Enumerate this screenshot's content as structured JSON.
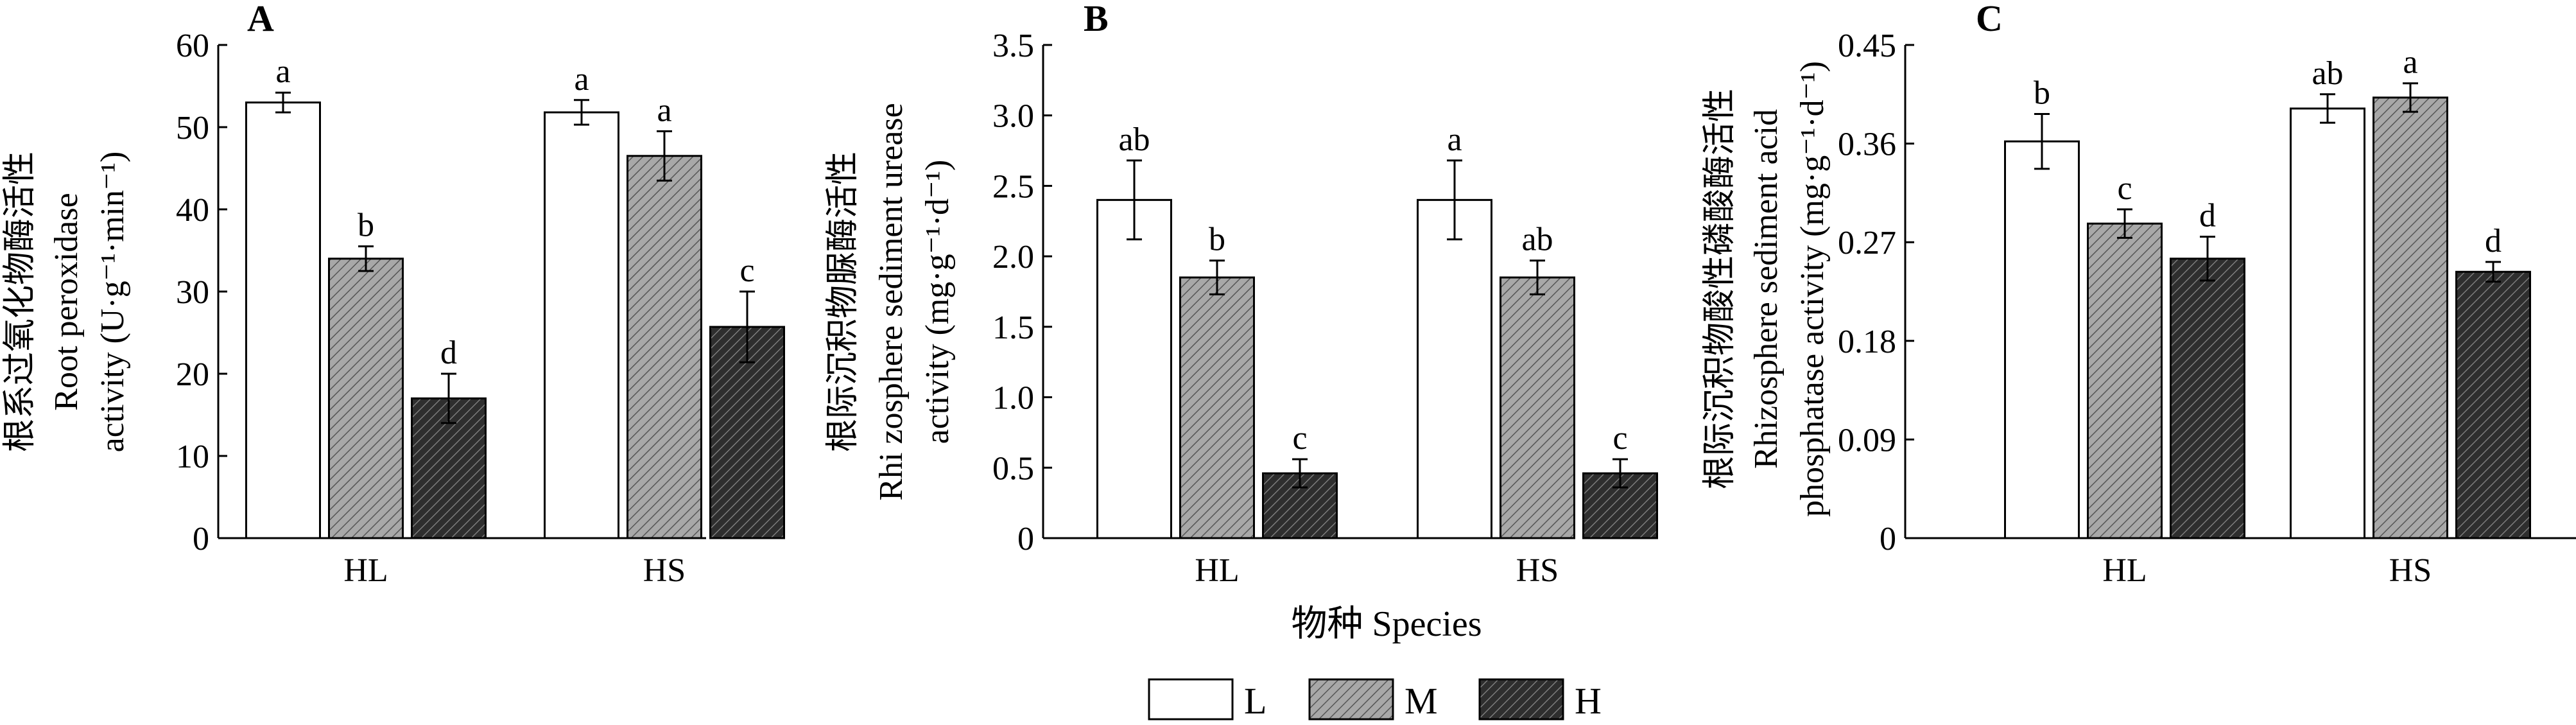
{
  "colors": {
    "L": "#ffffff",
    "M": "#a8a8a8",
    "H": "#3a3a3a",
    "axis": "#000000"
  },
  "chart_data": [
    {
      "type": "bar",
      "panel_label": "A",
      "ylabel_cn": "根系过氧化物酶活性",
      "ylabel_lines": [
        "Root peroxidase",
        "activity (U·g⁻¹·min⁻¹)"
      ],
      "categories": [
        "HL",
        "HS"
      ],
      "ylim": [
        0,
        60
      ],
      "yticks": [
        "0",
        "10",
        "20",
        "30",
        "40",
        "50",
        "60"
      ],
      "series": [
        {
          "name": "L",
          "values": [
            53,
            51.8
          ],
          "errors": [
            1.2,
            1.5
          ],
          "letters": [
            "a",
            "a"
          ]
        },
        {
          "name": "M",
          "values": [
            34,
            46.5
          ],
          "errors": [
            1.5,
            3.0
          ],
          "letters": [
            "b",
            "a"
          ]
        },
        {
          "name": "H",
          "values": [
            17,
            25.7
          ],
          "errors": [
            3.0,
            4.3
          ],
          "letters": [
            "d",
            "c"
          ]
        }
      ]
    },
    {
      "type": "bar",
      "panel_label": "B",
      "ylabel_cn": "根际沉积物脲酶活性",
      "ylabel_lines": [
        "Rhi zosphere sediment urease",
        "activity (mg·g⁻¹·d⁻¹)"
      ],
      "categories": [
        "HL",
        "HS"
      ],
      "ylim": [
        0,
        3.5
      ],
      "yticks": [
        "0",
        "0.5",
        "1.0",
        "1.5",
        "2.0",
        "2.5",
        "3.0",
        "3.5"
      ],
      "series": [
        {
          "name": "L",
          "values": [
            2.4,
            2.4
          ],
          "errors": [
            0.28,
            0.28
          ],
          "letters": [
            "ab",
            "a"
          ]
        },
        {
          "name": "M",
          "values": [
            1.85,
            1.85
          ],
          "errors": [
            0.12,
            0.12
          ],
          "letters": [
            "b",
            "ab"
          ]
        },
        {
          "name": "H",
          "values": [
            0.46,
            0.46
          ],
          "errors": [
            0.1,
            0.1
          ],
          "letters": [
            "c",
            "c"
          ]
        }
      ]
    },
    {
      "type": "bar",
      "panel_label": "C",
      "ylabel_cn": "根际沉积物酸性磷酸酶活性",
      "ylabel_lines": [
        "Rhizosphere sediment acid",
        "phosphatase activity (mg·g⁻¹·d⁻¹)"
      ],
      "categories": [
        "HL",
        "HS"
      ],
      "ylim": [
        0,
        0.45
      ],
      "yticks": [
        "0",
        "0.09",
        "0.18",
        "0.27",
        "0.36",
        "0.45"
      ],
      "series": [
        {
          "name": "L",
          "values": [
            0.362,
            0.392
          ],
          "errors": [
            0.025,
            0.013
          ],
          "letters": [
            "b",
            "ab"
          ]
        },
        {
          "name": "M",
          "values": [
            0.287,
            0.402
          ],
          "errors": [
            0.013,
            0.013
          ],
          "letters": [
            "c",
            "a"
          ]
        },
        {
          "name": "H",
          "values": [
            0.255,
            0.243
          ],
          "errors": [
            0.02,
            0.009
          ],
          "letters": [
            "d",
            "d"
          ]
        }
      ]
    }
  ],
  "xlabel": "物种 Species",
  "legend": {
    "items": [
      "L",
      "M",
      "H"
    ],
    "placement": "bottom-center"
  }
}
